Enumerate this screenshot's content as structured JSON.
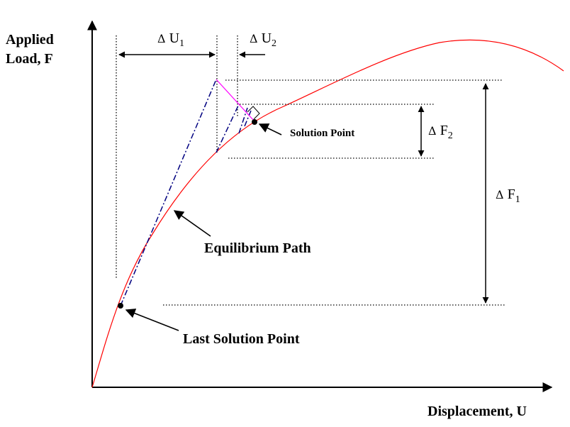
{
  "labels": {
    "y_axis_line1": "Applied",
    "y_axis_line2": "Load, F",
    "x_axis": "Displacement, U",
    "equilibrium_path": "Equilibrium Path",
    "last_solution_point": "Last Solution Point",
    "solution_point": "Solution Point",
    "delta_symbol": "Δ",
    "du1_var": "U",
    "du1_sub": "1",
    "du2_var": "U",
    "du2_sub": "2",
    "df1_var": "F",
    "df1_sub": "1",
    "df2_var": "F",
    "df2_sub": "2"
  },
  "colors": {
    "equilibrium_curve": "#ff0000",
    "tangent_lines": "#000080",
    "correction_lines": "#ff00ff",
    "axes": "#000000"
  }
}
